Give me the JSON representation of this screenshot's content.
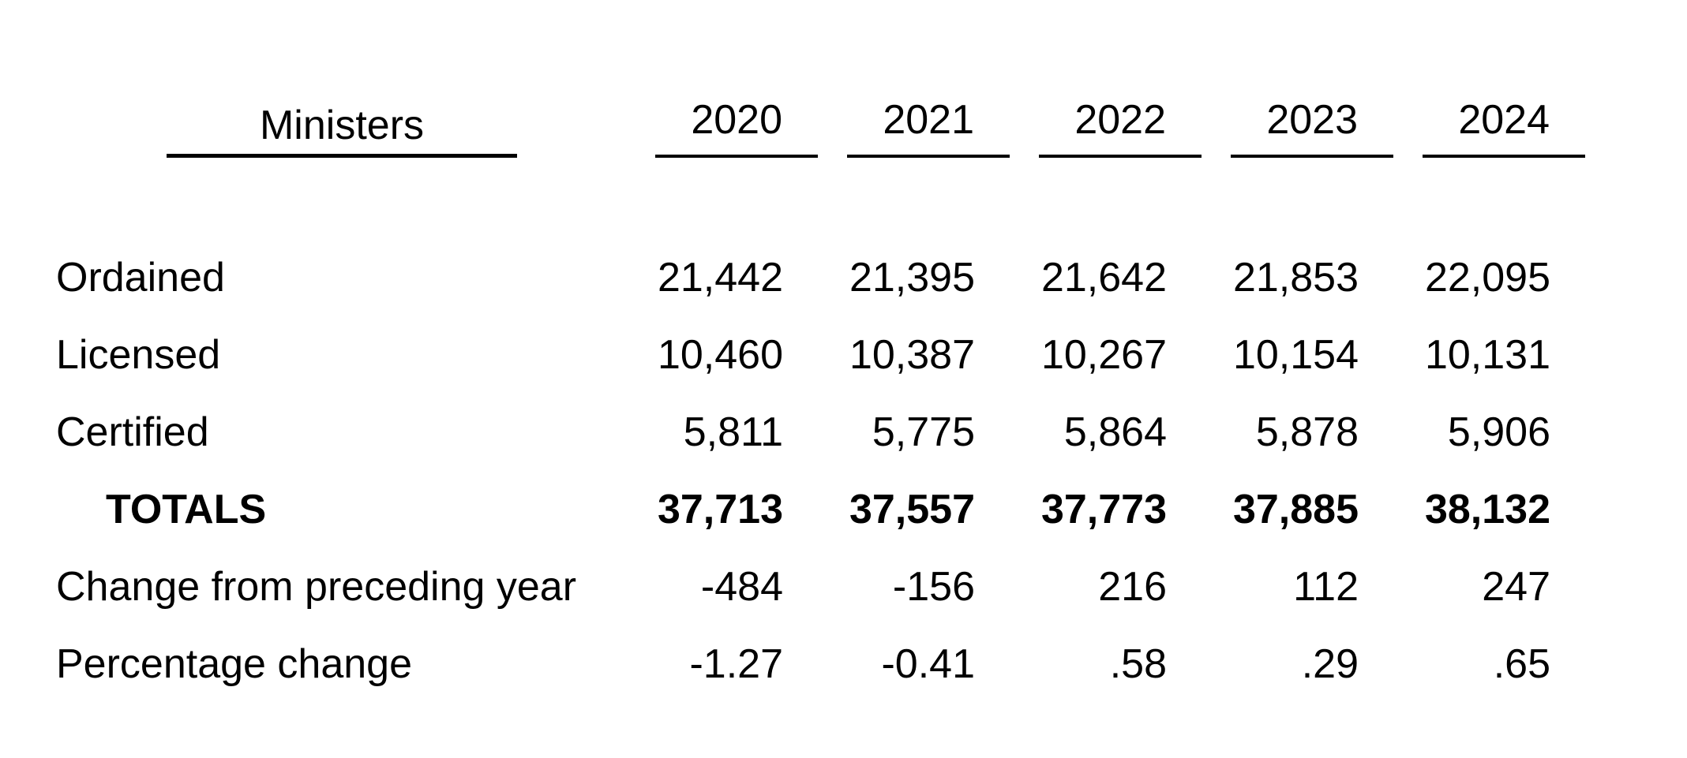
{
  "page": {
    "background_color": "#ffffff",
    "text_color": "#000000"
  },
  "table": {
    "header": {
      "label": "Ministers",
      "years": [
        "2020",
        "2021",
        "2022",
        "2023",
        "2024"
      ]
    },
    "rows": [
      {
        "label": "Ordained",
        "values": [
          "21,442",
          "21,395",
          "21,642",
          "21,853",
          "22,095"
        ]
      },
      {
        "label": "Licensed",
        "values": [
          "10,460",
          "10,387",
          "10,267",
          "10,154",
          "10,131"
        ]
      },
      {
        "label": "Certified",
        "values": [
          "5,811",
          "5,775",
          "5,864",
          "5,878",
          "5,906"
        ]
      },
      {
        "label": "TOTALS",
        "values": [
          "37,713",
          "37,557",
          "37,773",
          "37,885",
          "38,132"
        ]
      },
      {
        "label": "Change from preceding year",
        "values": [
          "-484",
          "-156",
          "216",
          "112",
          "247"
        ]
      },
      {
        "label": "Percentage change",
        "values": [
          "-1.27",
          "-0.41",
          ".58",
          ".29",
          ".65"
        ]
      }
    ]
  }
}
